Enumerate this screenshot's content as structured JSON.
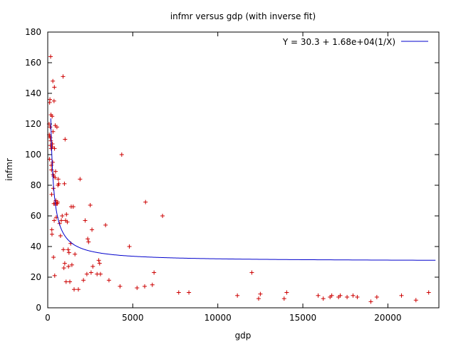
{
  "chart_data": {
    "type": "scatter",
    "title": "infmr versus gdp (with inverse fit)",
    "xlabel": "gdp",
    "ylabel": "infmr",
    "xlim": [
      0,
      23000
    ],
    "ylim": [
      0,
      180
    ],
    "xticks": [
      0,
      5000,
      10000,
      15000,
      20000
    ],
    "yticks": [
      0,
      20,
      40,
      60,
      80,
      100,
      120,
      140,
      160,
      180
    ],
    "grid": false,
    "legend_position": "top-right",
    "marker": "plus",
    "colors": {
      "points": "#cc0000",
      "fit": "#0000cc",
      "axis": "#000000"
    },
    "fit": {
      "label": "Y = 30.3 + 1.68e+04(1/X)",
      "intercept": 30.3,
      "coefficient": 16800,
      "x_min": 180,
      "x_max": 22800
    },
    "series": [
      {
        "points": [
          [
            80,
            120
          ],
          [
            90,
            113
          ],
          [
            100,
            97
          ],
          [
            110,
            134
          ],
          [
            120,
            112
          ],
          [
            130,
            136
          ],
          [
            140,
            118
          ],
          [
            150,
            111
          ],
          [
            160,
            106
          ],
          [
            170,
            164
          ],
          [
            180,
            109
          ],
          [
            190,
            126
          ],
          [
            200,
            104
          ],
          [
            210,
            93
          ],
          [
            220,
            90
          ],
          [
            230,
            74
          ],
          [
            240,
            51
          ],
          [
            250,
            48
          ],
          [
            260,
            125
          ],
          [
            270,
            107
          ],
          [
            280,
            105
          ],
          [
            290,
            95
          ],
          [
            300,
            148
          ],
          [
            310,
            115
          ],
          [
            320,
            87
          ],
          [
            330,
            78
          ],
          [
            340,
            33
          ],
          [
            350,
            86
          ],
          [
            360,
            68
          ],
          [
            370,
            135
          ],
          [
            380,
            57
          ],
          [
            390,
            144
          ],
          [
            400,
            104
          ],
          [
            410,
            21
          ],
          [
            420,
            68
          ],
          [
            430,
            85
          ],
          [
            440,
            119
          ],
          [
            460,
            89
          ],
          [
            480,
            70
          ],
          [
            500,
            59
          ],
          [
            520,
            68
          ],
          [
            540,
            118
          ],
          [
            560,
            68
          ],
          [
            580,
            69
          ],
          [
            600,
            80
          ],
          [
            620,
            84
          ],
          [
            650,
            81
          ],
          [
            700,
            55
          ],
          [
            750,
            47
          ],
          [
            800,
            57
          ],
          [
            850,
            60
          ],
          [
            900,
            151
          ],
          [
            920,
            38
          ],
          [
            950,
            26
          ],
          [
            980,
            81
          ],
          [
            1000,
            29
          ],
          [
            1020,
            110
          ],
          [
            1050,
            57
          ],
          [
            1080,
            17
          ],
          [
            1100,
            61
          ],
          [
            1150,
            56
          ],
          [
            1200,
            38
          ],
          [
            1220,
            27
          ],
          [
            1250,
            36
          ],
          [
            1300,
            17
          ],
          [
            1350,
            42
          ],
          [
            1380,
            66
          ],
          [
            1420,
            28
          ],
          [
            1500,
            66
          ],
          [
            1550,
            12
          ],
          [
            1600,
            35
          ],
          [
            1800,
            12
          ],
          [
            1900,
            84
          ],
          [
            2100,
            18
          ],
          [
            2200,
            57
          ],
          [
            2300,
            22
          ],
          [
            2350,
            45
          ],
          [
            2400,
            43
          ],
          [
            2500,
            67
          ],
          [
            2550,
            23
          ],
          [
            2600,
            51
          ],
          [
            2650,
            27
          ],
          [
            2900,
            22
          ],
          [
            3000,
            31
          ],
          [
            3050,
            29
          ],
          [
            3100,
            22
          ],
          [
            3400,
            54
          ],
          [
            3600,
            18
          ],
          [
            4250,
            14
          ],
          [
            4350,
            100
          ],
          [
            4800,
            40
          ],
          [
            5250,
            13
          ],
          [
            5700,
            14
          ],
          [
            5750,
            69
          ],
          [
            6150,
            15
          ],
          [
            6250,
            23
          ],
          [
            6750,
            60
          ],
          [
            7700,
            10
          ],
          [
            8300,
            10
          ],
          [
            11150,
            8
          ],
          [
            12000,
            23
          ],
          [
            12400,
            6
          ],
          [
            12500,
            9
          ],
          [
            13900,
            6
          ],
          [
            14050,
            10
          ],
          [
            15900,
            8
          ],
          [
            16200,
            6
          ],
          [
            16600,
            7
          ],
          [
            16700,
            8
          ],
          [
            17100,
            7
          ],
          [
            17200,
            8
          ],
          [
            17600,
            7
          ],
          [
            17950,
            8
          ],
          [
            18200,
            7
          ],
          [
            19000,
            4
          ],
          [
            19350,
            7
          ],
          [
            20800,
            8
          ],
          [
            21650,
            5
          ],
          [
            22400,
            10
          ]
        ]
      }
    ]
  }
}
